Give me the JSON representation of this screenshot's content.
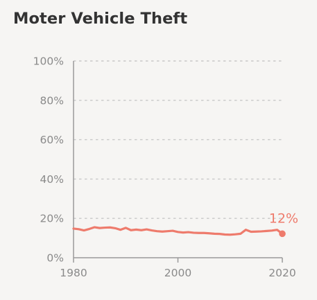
{
  "chart_data": {
    "type": "line",
    "title": "Moter Vehicle Theft",
    "xlim": [
      1980,
      2020
    ],
    "ylim": [
      0,
      100
    ],
    "x_ticks": [
      {
        "value": 1980,
        "label": "1980"
      },
      {
        "value": 2000,
        "label": "2000"
      },
      {
        "value": 2020,
        "label": "2020"
      }
    ],
    "y_ticks": [
      {
        "value": 0,
        "label": "0%"
      },
      {
        "value": 20,
        "label": "20%"
      },
      {
        "value": 40,
        "label": "40%"
      },
      {
        "value": 60,
        "label": "60%"
      },
      {
        "value": 80,
        "label": "80%"
      },
      {
        "value": 100,
        "label": "100%"
      }
    ],
    "grid": true,
    "series": [
      {
        "color": "#ee7b6c",
        "x": [
          1980,
          1981,
          1982,
          1983,
          1984,
          1985,
          1986,
          1987,
          1988,
          1989,
          1990,
          1991,
          1992,
          1993,
          1994,
          1995,
          1996,
          1997,
          1998,
          1999,
          2000,
          2001,
          2002,
          2003,
          2004,
          2005,
          2006,
          2007,
          2008,
          2009,
          2010,
          2011,
          2012,
          2013,
          2014,
          2015,
          2016,
          2017,
          2018,
          2019,
          2020
        ],
        "y": [
          14.8,
          14.5,
          13.9,
          14.6,
          15.5,
          15.1,
          15.3,
          15.4,
          15,
          14.2,
          15.2,
          14,
          14.3,
          14,
          14.4,
          13.9,
          13.5,
          13.3,
          13.5,
          13.7,
          13.1,
          12.8,
          13,
          12.7,
          12.6,
          12.6,
          12.4,
          12.2,
          12.1,
          11.8,
          11.7,
          11.9,
          12.2,
          14.2,
          13.2,
          13.3,
          13.4,
          13.6,
          13.8,
          14.2,
          12.2
        ]
      }
    ],
    "end_label": {
      "text": "12%",
      "x": 2020,
      "y": 12.2
    }
  }
}
